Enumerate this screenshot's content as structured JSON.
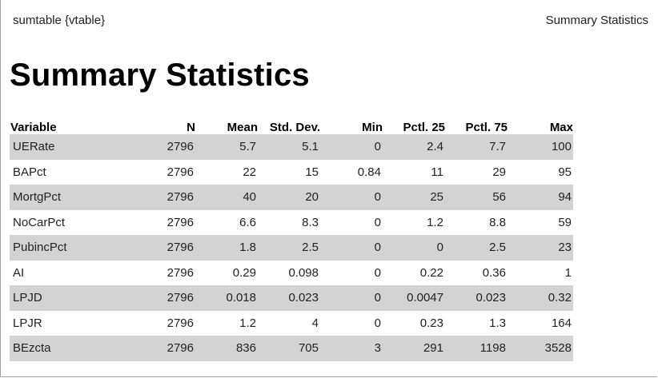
{
  "header": {
    "left_label": "sumtable {vtable}",
    "right_label": "Summary Statistics"
  },
  "page_title": "Summary Statistics",
  "table": {
    "columns": [
      "Variable",
      "N",
      "Mean",
      "Std. Dev.",
      "Min",
      "Pctl. 25",
      "Pctl. 75",
      "Max"
    ],
    "rows": [
      [
        "UERate",
        "2796",
        "5.7",
        "5.1",
        "0",
        "2.4",
        "7.7",
        "100"
      ],
      [
        "BAPct",
        "2796",
        "22",
        "15",
        "0.84",
        "11",
        "29",
        "95"
      ],
      [
        "MortgPct",
        "2796",
        "40",
        "20",
        "0",
        "25",
        "56",
        "94"
      ],
      [
        "NoCarPct",
        "2796",
        "6.6",
        "8.3",
        "0",
        "1.2",
        "8.8",
        "59"
      ],
      [
        "PubincPct",
        "2796",
        "1.8",
        "2.5",
        "0",
        "0",
        "2.5",
        "23"
      ],
      [
        "AI",
        "2796",
        "0.29",
        "0.098",
        "0",
        "0.22",
        "0.36",
        "1"
      ],
      [
        "LPJD",
        "2796",
        "0.018",
        "0.023",
        "0",
        "0.0047",
        "0.023",
        "0.32"
      ],
      [
        "LPJR",
        "2796",
        "1.2",
        "4",
        "0",
        "0.23",
        "1.3",
        "164"
      ],
      [
        "BEzcta",
        "2796",
        "836",
        "705",
        "3",
        "291",
        "1198",
        "3528"
      ]
    ],
    "stripe_color": "#d3d3d3"
  }
}
